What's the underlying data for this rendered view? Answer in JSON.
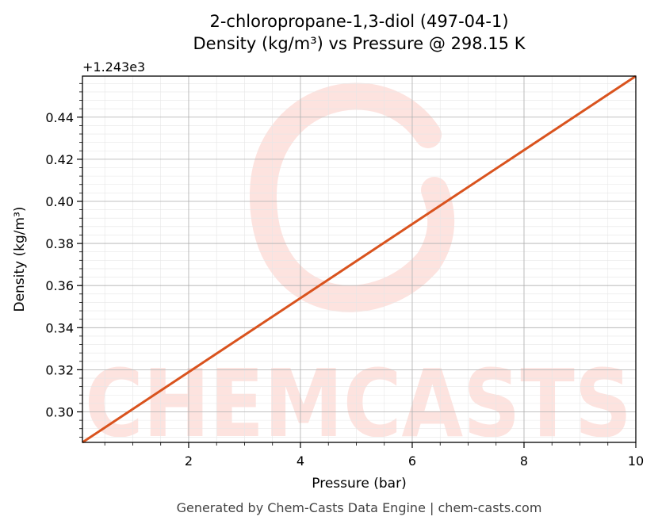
{
  "chart_data": {
    "type": "line",
    "title_line1": "2-chloropropane-1,3-diol (497-04-1)",
    "title_line2": "Density (kg/m³) vs Pressure @ 298.15 K",
    "xlabel": "Pressure (bar)",
    "ylabel": "Density (kg/m³)",
    "offset_label": "+1.243e3",
    "xlim": [
      0.1,
      10
    ],
    "ylim": [
      0.2855,
      0.4595
    ],
    "x_ticks": [
      2,
      4,
      6,
      8,
      10
    ],
    "x_tick_labels": [
      "2",
      "4",
      "6",
      "8",
      "10"
    ],
    "y_ticks": [
      0.3,
      0.32,
      0.34,
      0.36,
      0.38,
      0.4,
      0.42,
      0.44
    ],
    "y_tick_labels": [
      "0.30",
      "0.32",
      "0.34",
      "0.36",
      "0.38",
      "0.40",
      "0.42",
      "0.44"
    ],
    "grid": true,
    "series": [
      {
        "color": "#d9531e",
        "x": [
          0.1,
          10
        ],
        "y": [
          0.2855,
          0.4595
        ]
      }
    ]
  },
  "watermark": {
    "text": "CHEMCASTS",
    "color": "#fde3df"
  },
  "footer": "Generated by Chem-Casts Data Engine | chem-casts.com"
}
